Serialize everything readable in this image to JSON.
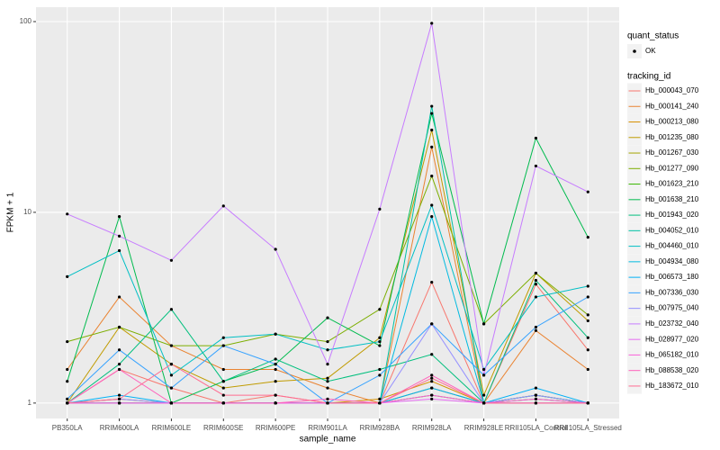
{
  "chart_data": {
    "type": "line",
    "x_label": "sample_name",
    "y_label": "FPKM + 1",
    "log_y": true,
    "grid": true,
    "ylim": [
      0.83,
      119
    ],
    "yticks": [
      1,
      10,
      100
    ],
    "categories": [
      "PB350LA",
      "RRIM600LA",
      "RRIM600LE",
      "RRIM600SE",
      "RRIM600PE",
      "RRIM901LA",
      "RRIM928BA",
      "RRIM928LA",
      "RRIM928LE",
      "RRII105LA_Control",
      "RRII105LA_Stressed"
    ],
    "point_legend": {
      "title": "quant_status",
      "labels": [
        "OK"
      ],
      "color": "#000000"
    },
    "legend_title": "tracking_id",
    "legend_position": "right",
    "series": [
      {
        "name": "Hb_000043_070",
        "color": "#F8766D",
        "values": [
          1.0,
          1.5,
          1.2,
          1.0,
          1.1,
          1.0,
          1.0,
          4.3,
          1.0,
          4.2,
          1.9
        ]
      },
      {
        "name": "Hb_000141_240",
        "color": "#EA8331",
        "values": [
          1.5,
          3.6,
          2.0,
          1.5,
          1.5,
          1.2,
          1.0,
          22,
          1.0,
          2.4,
          1.5
        ]
      },
      {
        "name": "Hb_000213_080",
        "color": "#D89000",
        "values": [
          1.0,
          1.05,
          1.0,
          1.0,
          1.0,
          1.0,
          1.05,
          1.3,
          1.0,
          1.1,
          1.0
        ]
      },
      {
        "name": "Hb_001235_080",
        "color": "#C09B00",
        "values": [
          1.0,
          2.5,
          1.6,
          1.2,
          1.3,
          1.35,
          2.2,
          27,
          1.1,
          4.8,
          2.7
        ]
      },
      {
        "name": "Hb_001267_030",
        "color": "#A3A500",
        "values": [
          1.0,
          1.0,
          1.0,
          1.0,
          1.0,
          1.0,
          1.0,
          1.2,
          1.0,
          1.1,
          1.0
        ]
      },
      {
        "name": "Hb_001277_090",
        "color": "#7CAE00",
        "values": [
          2.1,
          2.5,
          2.0,
          2.0,
          2.3,
          2.1,
          3.1,
          15.5,
          2.6,
          4.8,
          2.9
        ]
      },
      {
        "name": "Hb_001623_210",
        "color": "#39B600",
        "values": [
          1.0,
          1.0,
          1.0,
          1.0,
          1.0,
          1.0,
          1.0,
          1.1,
          1.0,
          1.05,
          1.0
        ]
      },
      {
        "name": "Hb_001638_210",
        "color": "#00BB4E",
        "values": [
          1.3,
          9.5,
          1.0,
          1.3,
          1.6,
          2.8,
          2.0,
          33,
          2.6,
          24.5,
          7.4
        ]
      },
      {
        "name": "Hb_001943_020",
        "color": "#00BF7D",
        "values": [
          1.0,
          1.6,
          3.1,
          1.3,
          1.7,
          1.3,
          1.5,
          1.8,
          1.0,
          4.4,
          2.2
        ]
      },
      {
        "name": "Hb_004052_010",
        "color": "#00C1A3",
        "values": [
          1.0,
          1.0,
          1.0,
          1.0,
          1.0,
          1.0,
          1.0,
          36,
          1.0,
          1.1,
          1.0
        ]
      },
      {
        "name": "Hb_004460_010",
        "color": "#00BFC4",
        "values": [
          4.6,
          6.3,
          1.4,
          2.2,
          2.3,
          1.9,
          2.1,
          10.9,
          1.5,
          3.6,
          4.1
        ]
      },
      {
        "name": "Hb_004934_080",
        "color": "#00BAE0",
        "values": [
          1.0,
          1.0,
          1.0,
          1.0,
          1.0,
          1.0,
          1.0,
          9.5,
          1.0,
          1.0,
          1.0
        ]
      },
      {
        "name": "Hb_006573_180",
        "color": "#00B0F6",
        "values": [
          1.0,
          1.1,
          1.0,
          1.0,
          1.0,
          1.0,
          1.0,
          1.2,
          1.0,
          1.2,
          1.0
        ]
      },
      {
        "name": "Hb_007336_030",
        "color": "#35A2FF",
        "values": [
          1.05,
          1.9,
          1.2,
          2.0,
          1.6,
          1.0,
          1.4,
          2.6,
          1.4,
          2.5,
          3.6
        ]
      },
      {
        "name": "Hb_007975_040",
        "color": "#9590FF",
        "values": [
          1.0,
          1.05,
          1.0,
          1.0,
          1.0,
          1.0,
          1.0,
          2.6,
          1.0,
          1.1,
          1.0
        ]
      },
      {
        "name": "Hb_023732_040",
        "color": "#C77CFF",
        "values": [
          9.8,
          7.5,
          5.6,
          10.8,
          6.4,
          1.6,
          10.4,
          98,
          1.4,
          17.5,
          12.8
        ]
      },
      {
        "name": "Hb_028977_020",
        "color": "#E76BF3",
        "values": [
          1.0,
          1.0,
          1.0,
          1.0,
          1.0,
          1.0,
          1.0,
          1.05,
          1.0,
          1.0,
          1.0
        ]
      },
      {
        "name": "Hb_065182_010",
        "color": "#FA62DB",
        "values": [
          1.0,
          1.0,
          1.0,
          1.0,
          1.0,
          1.0,
          1.0,
          1.1,
          1.0,
          1.05,
          1.0
        ]
      },
      {
        "name": "Hb_088538_020",
        "color": "#FF62BC",
        "values": [
          1.0,
          1.5,
          1.0,
          1.0,
          1.0,
          1.05,
          1.0,
          1.4,
          1.0,
          1.0,
          1.0
        ]
      },
      {
        "name": "Hb_183672_010",
        "color": "#FF6C91",
        "values": [
          1.0,
          1.05,
          1.6,
          1.1,
          1.1,
          1.0,
          1.0,
          1.35,
          1.0,
          1.0,
          1.0
        ]
      }
    ]
  }
}
